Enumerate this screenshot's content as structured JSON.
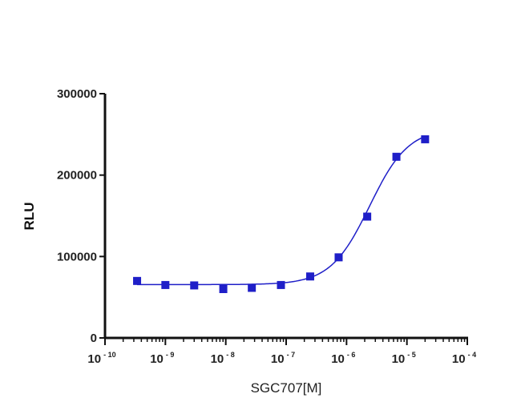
{
  "chart_data": {
    "type": "scatter",
    "title": "",
    "xlabel": "SGC707[M]",
    "ylabel": "RLU",
    "x_scale": "log",
    "xlim": [
      1e-10,
      0.0001
    ],
    "ylim": [
      0,
      300000
    ],
    "x_tick_labels": [
      {
        "base": "10",
        "exp": "-10"
      },
      {
        "base": "10",
        "exp": "-9"
      },
      {
        "base": "10",
        "exp": "-8"
      },
      {
        "base": "10",
        "exp": "-7"
      },
      {
        "base": "10",
        "exp": "-6"
      },
      {
        "base": "10",
        "exp": "-5"
      },
      {
        "base": "10",
        "exp": "-4"
      }
    ],
    "y_ticks": [
      "0",
      "100000",
      "200000",
      "300000"
    ],
    "grid": false,
    "marker_color": "#1f1fc8",
    "series": [
      {
        "marker": "square",
        "x": [
          3.4e-10,
          1e-09,
          3e-09,
          9.1e-09,
          2.7e-08,
          8.2e-08,
          2.5e-07,
          7.4e-07,
          2.2e-06,
          6.7e-06,
          2e-05
        ],
        "y": [
          70000,
          65000,
          64500,
          60000,
          61500,
          65000,
          75500,
          99000,
          149000,
          222500,
          244000
        ]
      }
    ],
    "fit_curve": {
      "model": "four-parameter logistic",
      "bottom": 65500,
      "top": 258000,
      "ec50": 2.4e-06,
      "hill": 1.35
    }
  }
}
